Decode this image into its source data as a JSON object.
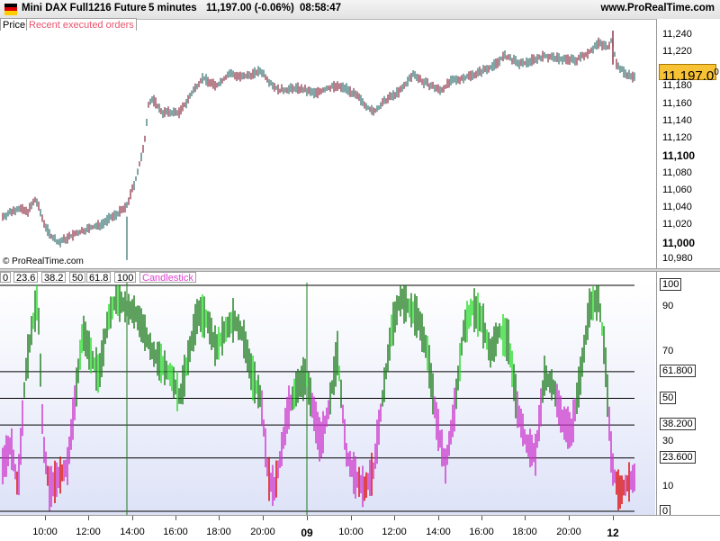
{
  "header": {
    "instrument": "Mini DAX Full1216 Future",
    "period": "5 minutes",
    "price_change": "11,197.00 (-0.06%)",
    "time": "08:58:47",
    "site": "www.ProRealTime.com"
  },
  "tabs": {
    "price": "Price",
    "orders": "Recent executed orders"
  },
  "price_axis": {
    "labels": [
      "11,240",
      "11,220",
      "11,200",
      "11,180",
      "11,160",
      "11,140",
      "11,120",
      "11,100",
      "11,080",
      "11,060",
      "11,040",
      "11,020",
      "11,000",
      "10,980"
    ],
    "bold_labels": [
      "11,100",
      "11,000"
    ],
    "current_price": "11,197.0",
    "current_price_sup": "0"
  },
  "copyright": "© ProRealTime.com",
  "oscillator": {
    "fib_tabs": [
      "0",
      "23.6",
      "38.2",
      "50",
      "61.8",
      "100"
    ],
    "indicator_label": "Candlestick",
    "axis_labels": [
      "90",
      "70",
      "50",
      "30",
      "10"
    ],
    "boxed_levels": [
      "100",
      "61.800",
      "50",
      "38.200",
      "23.600",
      "0"
    ]
  },
  "time_axis": {
    "labels": [
      "10:00",
      "12:00",
      "14:00",
      "16:00",
      "18:00",
      "20:00",
      "09",
      "10:00",
      "12:00",
      "14:00",
      "16:00",
      "18:00",
      "20:00",
      "12"
    ],
    "bold_labels": [
      "09",
      "12"
    ]
  },
  "colors": {
    "price_line": "#2e6b6b",
    "bar_up": "#1a7a1a",
    "bar_up_light": "#22dd22",
    "bar_down": "#cc33cc",
    "bar_red": "#dd0000",
    "price_tag_bg": "#f7c233"
  }
}
